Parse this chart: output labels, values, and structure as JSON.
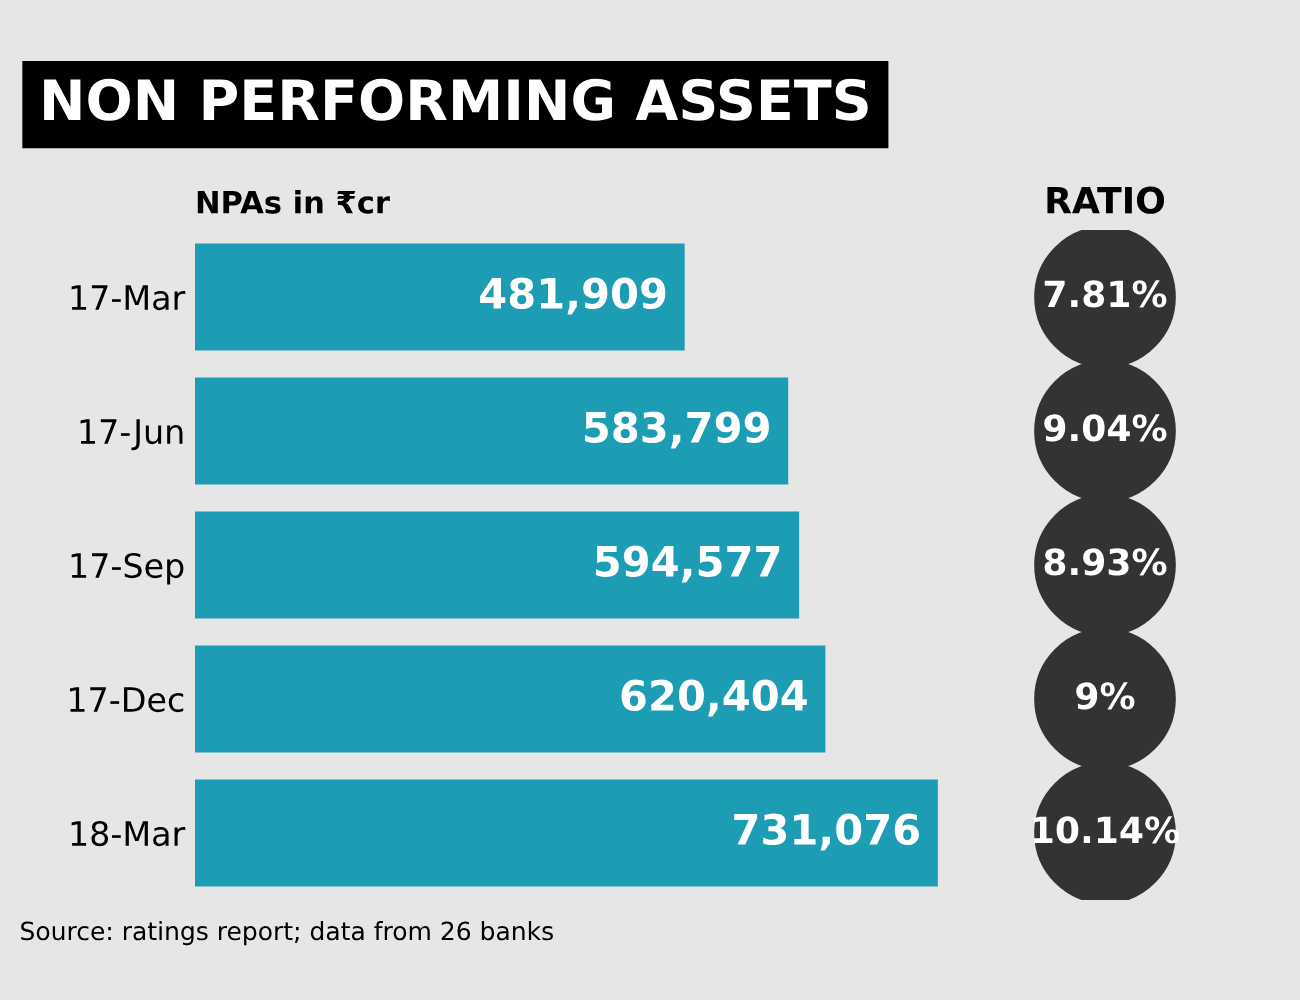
{
  "chart_data": [
    {
      "type": "bar",
      "orientation": "horizontal",
      "title": "NON PERFORMING ASSETS",
      "xlabel": "NPAs in ₹cr",
      "categories": [
        "17-Mar",
        "17-Jun",
        "17-Sep",
        "17-Dec",
        "18-Mar"
      ],
      "values": [
        481909,
        583799,
        594577,
        620404,
        731076
      ],
      "value_labels": [
        "481,909",
        "583,799",
        "594,577",
        "620,404",
        "731,076"
      ],
      "color": "#1c9db3",
      "tick_labels": "y",
      "grid": false,
      "legend": false,
      "annotations": [
        "Source: ratings report; data from 26 banks"
      ]
    },
    {
      "type": "other",
      "title": "RATIO",
      "values": [
        7.81,
        9.04,
        8.93,
        9,
        10.14
      ],
      "value_labels": [
        "7.81%",
        "9.04%",
        "8.93%",
        "9%",
        "10.14%"
      ],
      "color": "#333333"
    }
  ]
}
